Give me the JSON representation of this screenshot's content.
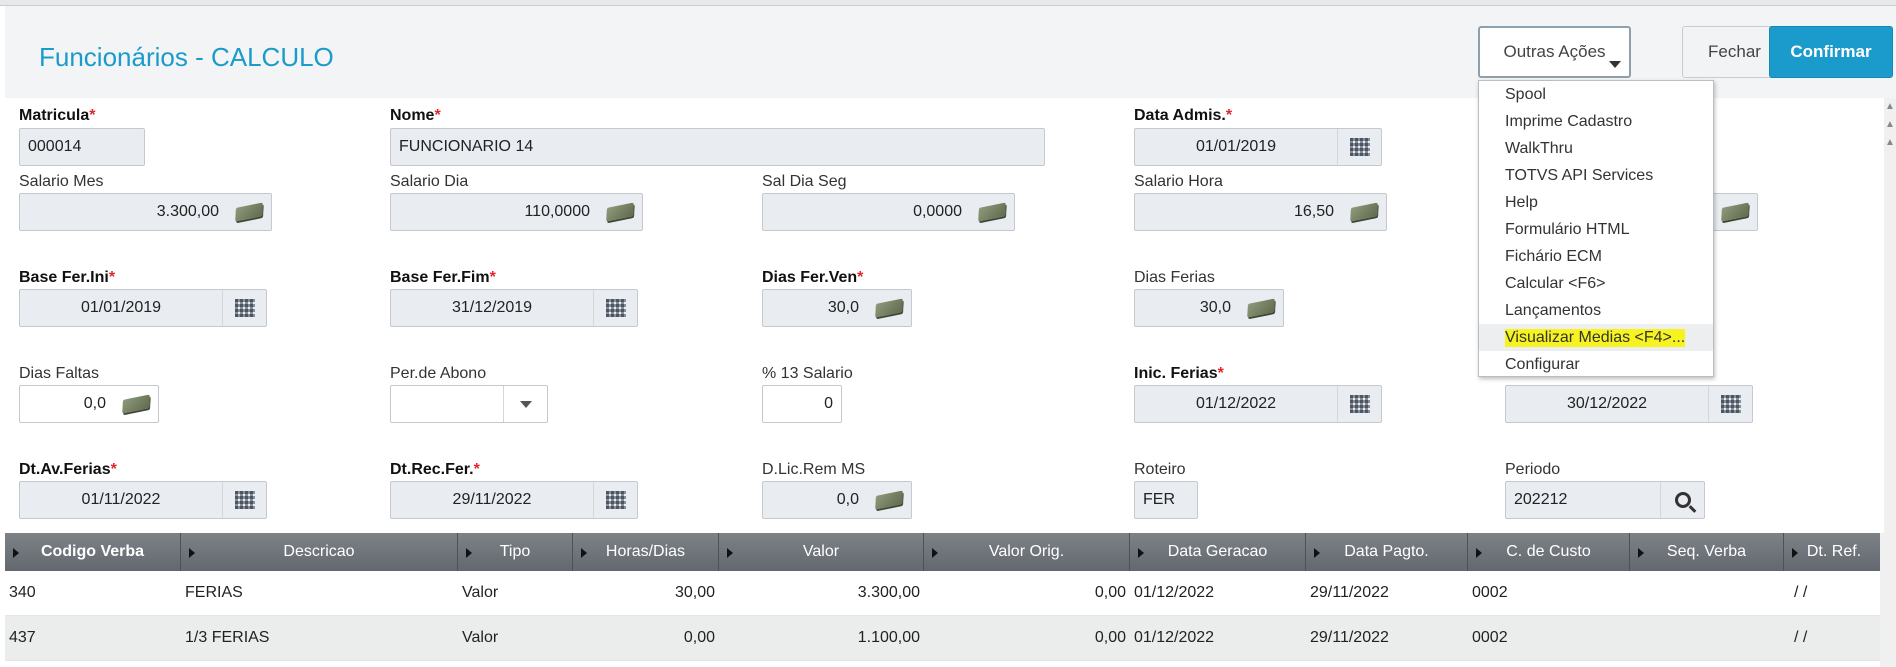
{
  "header": {
    "title": "Funcionários - CALCULO",
    "outras_label": "Outras Ações",
    "fechar_label": "Fechar",
    "confirmar_label": "Confirmar"
  },
  "menu": {
    "items": [
      "Spool",
      "Imprime Cadastro",
      "WalkThru",
      "TOTVS API Services",
      "Help",
      "Formulário HTML",
      "Fichário ECM",
      "Calcular <F6>",
      "Lançamentos",
      "Visualizar Medias <F4>...",
      "Configurar"
    ]
  },
  "form": {
    "matricula": {
      "label": "Matricula",
      "value": "000014"
    },
    "nome": {
      "label": "Nome",
      "value": "FUNCIONARIO 14"
    },
    "data_admis": {
      "label": "Data Admis.",
      "value": "01/01/2019"
    },
    "salario_mes": {
      "label": "Salario Mes",
      "value": "3.300,00"
    },
    "salario_dia": {
      "label": "Salario Dia",
      "value": "110,0000"
    },
    "sal_dia_seg": {
      "label": "Sal Dia Seg",
      "value": "0,0000"
    },
    "salario_hora": {
      "label": "Salario Hora",
      "value": "16,50"
    },
    "base_fer_ini": {
      "label": "Base Fer.Ini",
      "value": "01/01/2019"
    },
    "base_fer_fim": {
      "label": "Base Fer.Fim",
      "value": "31/12/2019"
    },
    "dias_fer_ven": {
      "label": "Dias Fer.Ven",
      "value": "30,0"
    },
    "dias_ferias": {
      "label": "Dias Ferias",
      "value": "30,0"
    },
    "dias_faltas": {
      "label": "Dias Faltas",
      "value": "0,0"
    },
    "per_abono": {
      "label": "Per.de Abono",
      "value": ""
    },
    "pct_13": {
      "label": "% 13 Salario",
      "value": "0"
    },
    "inic_ferias": {
      "label": "Inic. Ferias",
      "value": "01/12/2022"
    },
    "fim_ferias": {
      "value": "30/12/2022"
    },
    "dt_av_ferias": {
      "label": "Dt.Av.Ferias",
      "value": "01/11/2022"
    },
    "dt_rec_fer": {
      "label": "Dt.Rec.Fer.",
      "value": "29/11/2022"
    },
    "d_lic_rem": {
      "label": "D.Lic.Rem MS",
      "value": "0,0"
    },
    "roteiro": {
      "label": "Roteiro",
      "value": "FER"
    },
    "periodo": {
      "label": "Periodo",
      "value": "202212"
    }
  },
  "grid": {
    "headers": [
      "Codigo Verba",
      "Descricao",
      "Tipo",
      "Horas/Dias",
      "Valor",
      "Valor Orig.",
      "Data Geracao",
      "Data Pagto.",
      "C. de Custo",
      "Seq. Verba",
      "Dt. Ref."
    ],
    "rows": [
      [
        "340",
        "FERIAS",
        "Valor",
        "30,00",
        "3.300,00",
        "0,00",
        "01/12/2022",
        "29/11/2022",
        "0002",
        "",
        "/  /"
      ],
      [
        "437",
        "1/3 FERIAS",
        "Valor",
        "0,00",
        "1.100,00",
        "0,00",
        "01/12/2022",
        "29/11/2022",
        "0002",
        "",
        "/  /"
      ]
    ]
  },
  "colors": {
    "accent": "#1a9bcb",
    "required": "#e0262a",
    "highlight": "#f6f321"
  }
}
